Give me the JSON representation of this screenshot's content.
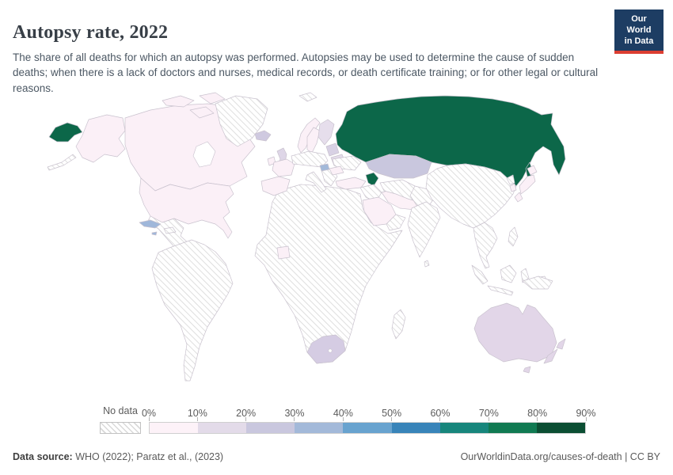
{
  "header": {
    "title": "Autopsy rate, 2022",
    "subtitle": "The share of all deaths for which an autopsy was performed. Autopsies may be used to determine the cause of sudden deaths; when there is a lack of doctors and nurses, medical records, or death certificate training; or for other legal or cultural reasons.",
    "logo": {
      "line1": "Our World",
      "line2": "in Data",
      "bg_color": "#1d3d63",
      "accent_color": "#dc3e32"
    }
  },
  "legend": {
    "no_data_label": "No data",
    "tick_labels": [
      "0%",
      "10%",
      "20%",
      "30%",
      "40%",
      "50%",
      "60%",
      "70%",
      "80%",
      "90%"
    ],
    "bucket_colors": [
      "#fdf2f8",
      "#e3dbe9",
      "#c9c7de",
      "#a3b9d9",
      "#68a3cf",
      "#3884b9",
      "#17867c",
      "#107a52",
      "#0b4e33"
    ]
  },
  "footer": {
    "source_label": "Data source:",
    "source_text": " WHO (2022); Paratz et al., (2023)",
    "link_text": "OurWorldinData.org/causes-of-death | CC BY"
  },
  "map": {
    "ocean_color": "#ffffff",
    "border_color": "#c9c2ce",
    "no_data_hatch_color": "#d9d9d9",
    "countries": {
      "russia": {
        "color": "#0c6749",
        "bucket": "70-80%"
      },
      "georgia": {
        "color": "#0c6749",
        "bucket": "70-80%"
      },
      "united_states": {
        "color": "#fbf0f7",
        "bucket": "0-10%"
      },
      "canada": {
        "color": "#fbf0f7",
        "bucket": "0-10%"
      },
      "japan": {
        "color": "#fbf0f7",
        "bucket": "0-10%"
      },
      "south_korea": {
        "color": "#fbf0f7",
        "bucket": "0-10%"
      },
      "norway": {
        "color": "#fbf0f7",
        "bucket": "0-10%"
      },
      "sweden": {
        "color": "#fbf0f7",
        "bucket": "0-10%"
      },
      "denmark": {
        "color": "#fbf0f7",
        "bucket": "0-10%"
      },
      "ireland": {
        "color": "#fbf0f7",
        "bucket": "0-10%"
      },
      "france": {
        "color": "#fbf0f7",
        "bucket": "0-10%"
      },
      "spain_portugal": {
        "color": "#fbf0f7",
        "bucket": "0-10%"
      },
      "romania": {
        "color": "#fbf0f7",
        "bucket": "0-10%"
      },
      "turkey": {
        "color": "#fbf0f7",
        "bucket": "0-10%"
      },
      "iran": {
        "color": "#fcf1f7",
        "bucket": "0-10%"
      },
      "saudi_arabia": {
        "color": "#fbf0f7",
        "bucket": "0-10%"
      },
      "ivory_coast": {
        "color": "#fbf0f7",
        "bucket": "0-10%"
      },
      "united_kingdom": {
        "color": "#ded6e7",
        "bucket": "10-20%"
      },
      "finland": {
        "color": "#e6deec",
        "bucket": "10-20%"
      },
      "belarus": {
        "color": "#e3dbe9",
        "bucket": "10-20%"
      },
      "baltics": {
        "color": "#d8d1e4",
        "bucket": "20-30%"
      },
      "australia": {
        "color": "#e2d6e8",
        "bucket": "10-20%"
      },
      "new_zealand": {
        "color": "#e2d6e8",
        "bucket": "10-20%"
      },
      "iceland": {
        "color": "#cfc9e0",
        "bucket": "20-30%"
      },
      "south_africa": {
        "color": "#d5cce3",
        "bucket": "20-30%"
      },
      "kazakhstan": {
        "color": "#c9c7de",
        "bucket": "20-30%"
      },
      "hungary": {
        "color": "#a3b9d9",
        "bucket": "30-40%"
      },
      "cuba": {
        "color": "#9fb7da",
        "bucket": "30-40%"
      },
      "jamaica": {
        "color": "#9fb7da",
        "bucket": "30-40%"
      }
    },
    "no_data_regions": [
      "Greenland",
      "Mexico & Central America",
      "South America",
      "Hispaniola",
      "Most of Africa",
      "Madagascar",
      "Germany & Central Europe",
      "Italy",
      "Balkans",
      "Ukraine",
      "Svalbard",
      "Iraq & Syria",
      "Yemen & Oman",
      "Central Asia",
      "Afghanistan & Pakistan",
      "China & Mongolia",
      "India",
      "Sri Lanka",
      "Southeast Asia",
      "Indonesia",
      "Philippines",
      "North Korea",
      "Papua New Guinea"
    ]
  },
  "chart_data": {
    "type": "choropleth_map",
    "title": "Autopsy rate, 2022",
    "unit": "%",
    "legend_ticks": [
      "0%",
      "10%",
      "20%",
      "30%",
      "40%",
      "50%",
      "60%",
      "70%",
      "80%",
      "90%"
    ],
    "legend_colors": [
      "#fdf2f8",
      "#e3dbe9",
      "#c9c7de",
      "#a3b9d9",
      "#68a3cf",
      "#3884b9",
      "#17867c",
      "#107a52",
      "#0b4e33"
    ],
    "series": [
      {
        "entity": "Russia",
        "bucket": "70-80%"
      },
      {
        "entity": "Georgia",
        "bucket": "70-80%"
      },
      {
        "entity": "Cuba",
        "bucket": "30-40%"
      },
      {
        "entity": "Hungary",
        "bucket": "30-40%"
      },
      {
        "entity": "Kazakhstan",
        "bucket": "20-30%"
      },
      {
        "entity": "Iceland",
        "bucket": "20-30%"
      },
      {
        "entity": "South Africa",
        "bucket": "20-30%"
      },
      {
        "entity": "Lithuania/Latvia/Estonia",
        "bucket": "20-30%"
      },
      {
        "entity": "United Kingdom",
        "bucket": "10-20%"
      },
      {
        "entity": "Finland",
        "bucket": "10-20%"
      },
      {
        "entity": "Belarus",
        "bucket": "10-20%"
      },
      {
        "entity": "Australia",
        "bucket": "10-20%"
      },
      {
        "entity": "New Zealand",
        "bucket": "10-20%"
      },
      {
        "entity": "United States",
        "bucket": "0-10%"
      },
      {
        "entity": "Canada",
        "bucket": "0-10%"
      },
      {
        "entity": "Japan",
        "bucket": "0-10%"
      },
      {
        "entity": "South Korea",
        "bucket": "0-10%"
      },
      {
        "entity": "Norway",
        "bucket": "0-10%"
      },
      {
        "entity": "Sweden",
        "bucket": "0-10%"
      },
      {
        "entity": "France",
        "bucket": "0-10%"
      },
      {
        "entity": "Spain",
        "bucket": "0-10%"
      },
      {
        "entity": "Romania",
        "bucket": "0-10%"
      },
      {
        "entity": "Turkey",
        "bucket": "0-10%"
      },
      {
        "entity": "Iran",
        "bucket": "0-10%"
      },
      {
        "entity": "Saudi Arabia",
        "bucket": "0-10%"
      },
      {
        "entity": "Cote d'Ivoire",
        "bucket": "0-10%"
      },
      {
        "entity": "Most other countries",
        "bucket": "No data"
      }
    ]
  }
}
